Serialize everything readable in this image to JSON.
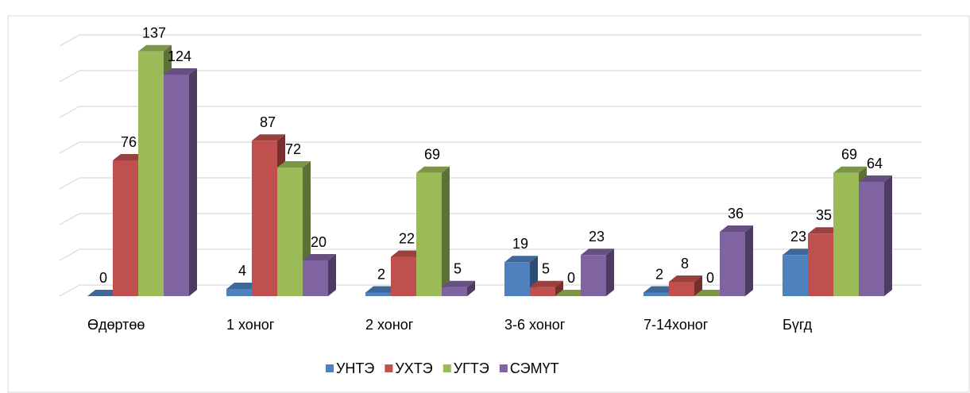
{
  "chart_data": {
    "type": "bar3d",
    "categories": [
      "Өдөртөө",
      "1 хоног",
      "2 хоног",
      "3-6 хоног",
      "7-14хоног",
      "Бүгд"
    ],
    "series": [
      {
        "name": "УНТЭ",
        "color": "#4f81bd",
        "values": [
          0,
          4,
          2,
          19,
          2,
          23
        ]
      },
      {
        "name": "УХТЭ",
        "color": "#c0504d",
        "values": [
          76,
          87,
          22,
          5,
          8,
          35
        ]
      },
      {
        "name": "УГТЭ",
        "color": "#9bbb59",
        "values": [
          137,
          72,
          69,
          0,
          0,
          69
        ]
      },
      {
        "name": "СЭМҮТ",
        "color": "#8064a2",
        "values": [
          124,
          20,
          5,
          23,
          36,
          64
        ]
      }
    ],
    "ylim": [
      0,
      140
    ],
    "yticks": [
      0,
      20,
      40,
      60,
      80,
      100,
      120,
      140
    ],
    "grid": true,
    "legend": "bottom"
  }
}
